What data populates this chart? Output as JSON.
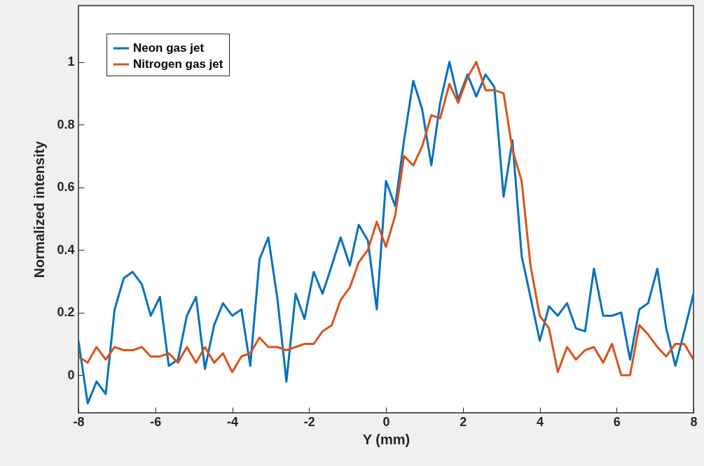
{
  "chart_data": {
    "type": "line",
    "xlabel": "Y (mm)",
    "ylabel": "Normalized intensity",
    "xlim": [
      -8,
      8
    ],
    "ylim": [
      -0.12,
      1.18
    ],
    "xticks": [
      -8,
      -6,
      -4,
      -2,
      0,
      2,
      4,
      6,
      8
    ],
    "yticks": [
      0,
      0.2,
      0.4,
      0.6,
      0.8,
      1
    ],
    "grid": false,
    "legend": "top left",
    "line_style": "solid",
    "marker": "none",
    "x": [
      -8,
      -7.76,
      -7.53,
      -7.29,
      -7.06,
      -6.82,
      -6.59,
      -6.35,
      -6.12,
      -5.88,
      -5.65,
      -5.41,
      -5.18,
      -4.94,
      -4.71,
      -4.47,
      -4.24,
      -4,
      -3.76,
      -3.53,
      -3.29,
      -3.06,
      -2.82,
      -2.59,
      -2.35,
      -2.12,
      -1.88,
      -1.65,
      -1.41,
      -1.18,
      -0.94,
      -0.71,
      -0.47,
      -0.24,
      0,
      0.24,
      0.47,
      0.71,
      0.94,
      1.18,
      1.41,
      1.65,
      1.88,
      2.12,
      2.35,
      2.59,
      2.82,
      3.06,
      3.29,
      3.53,
      3.76,
      4,
      4.24,
      4.47,
      4.71,
      4.94,
      5.18,
      5.41,
      5.65,
      5.88,
      6.12,
      6.35,
      6.59,
      6.82,
      7.06,
      7.29,
      7.53,
      7.76,
      8
    ],
    "series": [
      {
        "name": "Neon gas jet",
        "color": "#0072bd",
        "values": [
          0.11,
          -0.09,
          -0.02,
          -0.06,
          0.21,
          0.31,
          0.33,
          0.29,
          0.19,
          0.25,
          0.03,
          0.05,
          0.19,
          0.25,
          0.02,
          0.16,
          0.23,
          0.19,
          0.21,
          0.03,
          0.37,
          0.44,
          0.24,
          -0.02,
          0.26,
          0.18,
          0.33,
          0.26,
          0.35,
          0.44,
          0.35,
          0.48,
          0.43,
          0.21,
          0.62,
          0.54,
          0.75,
          0.94,
          0.85,
          0.67,
          0.87,
          1.0,
          0.88,
          0.96,
          0.89,
          0.96,
          0.92,
          0.57,
          0.75,
          0.38,
          0.25,
          0.11,
          0.22,
          0.19,
          0.23,
          0.15,
          0.14,
          0.34,
          0.19,
          0.19,
          0.2,
          0.05,
          0.21,
          0.23,
          0.34,
          0.15,
          0.03,
          0.14,
          0.26
        ]
      },
      {
        "name": "Nitrogen gas jet",
        "color": "#d95319",
        "values": [
          0.06,
          0.04,
          0.09,
          0.05,
          0.09,
          0.08,
          0.08,
          0.09,
          0.06,
          0.06,
          0.07,
          0.04,
          0.09,
          0.04,
          0.09,
          0.04,
          0.07,
          0.01,
          0.06,
          0.07,
          0.12,
          0.09,
          0.09,
          0.08,
          0.09,
          0.1,
          0.1,
          0.14,
          0.16,
          0.24,
          0.28,
          0.36,
          0.4,
          0.49,
          0.41,
          0.51,
          0.7,
          0.67,
          0.73,
          0.83,
          0.82,
          0.93,
          0.87,
          0.95,
          1.0,
          0.91,
          0.91,
          0.9,
          0.72,
          0.62,
          0.35,
          0.19,
          0.15,
          0.01,
          0.09,
          0.05,
          0.08,
          0.09,
          0.04,
          0.1,
          0.0,
          0.0,
          0.16,
          0.13,
          0.09,
          0.06,
          0.1,
          0.1,
          0.05
        ]
      }
    ]
  }
}
